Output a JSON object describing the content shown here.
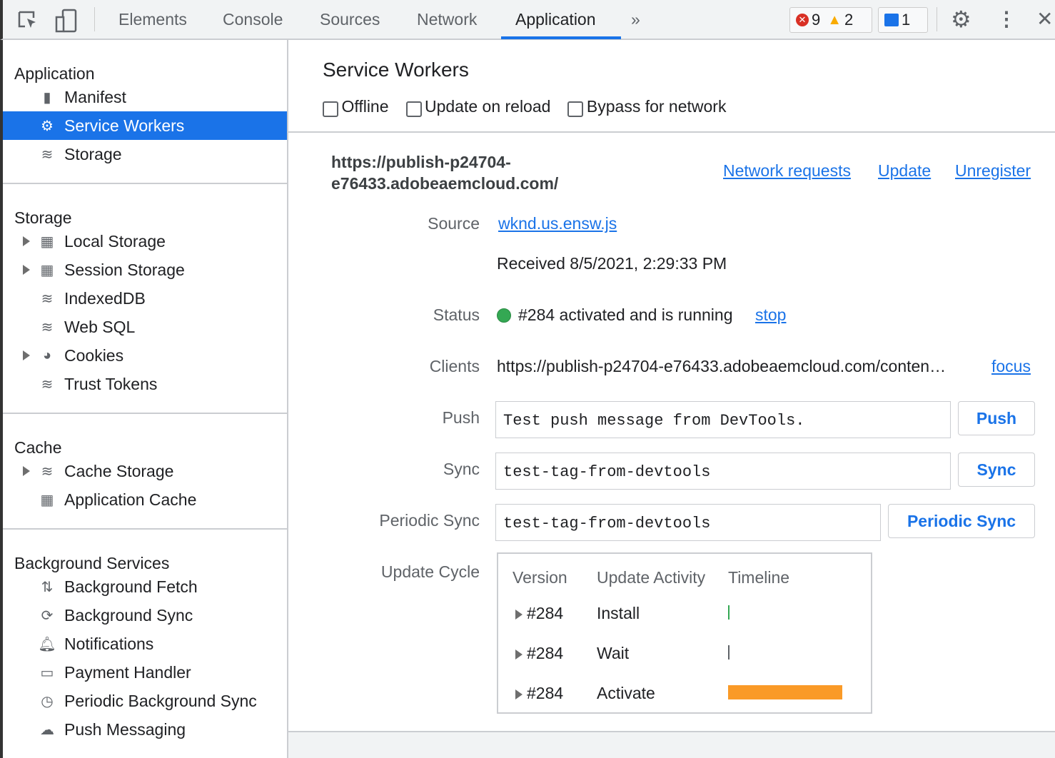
{
  "toolbar": {
    "tabs": [
      "Elements",
      "Console",
      "Sources",
      "Network",
      "Application"
    ],
    "active_tab": "Application",
    "more": "»",
    "errors": "9",
    "warnings": "2",
    "messages": "1",
    "icons": [
      "inspect-icon",
      "device-toggle-icon",
      "gear-icon",
      "more-vert-icon",
      "close-icon"
    ]
  },
  "sidebar": {
    "sections": [
      {
        "title": "Application",
        "items": [
          {
            "label": "Manifest",
            "icon": "file-icon"
          },
          {
            "label": "Service Workers",
            "icon": "gear-icon",
            "selected": true
          },
          {
            "label": "Storage",
            "icon": "database-icon"
          }
        ]
      },
      {
        "title": "Storage",
        "items": [
          {
            "label": "Local Storage",
            "icon": "table-icon",
            "expandable": true
          },
          {
            "label": "Session Storage",
            "icon": "table-icon",
            "expandable": true
          },
          {
            "label": "IndexedDB",
            "icon": "database-icon"
          },
          {
            "label": "Web SQL",
            "icon": "database-icon"
          },
          {
            "label": "Cookies",
            "icon": "cookie-icon",
            "expandable": true
          },
          {
            "label": "Trust Tokens",
            "icon": "database-icon"
          }
        ]
      },
      {
        "title": "Cache",
        "items": [
          {
            "label": "Cache Storage",
            "icon": "database-icon",
            "expandable": true
          },
          {
            "label": "Application Cache",
            "icon": "table-icon"
          }
        ]
      },
      {
        "title": "Background Services",
        "items": [
          {
            "label": "Background Fetch",
            "icon": "updown-arrows-icon"
          },
          {
            "label": "Background Sync",
            "icon": "sync-icon"
          },
          {
            "label": "Notifications",
            "icon": "bell-icon"
          },
          {
            "label": "Payment Handler",
            "icon": "card-icon"
          },
          {
            "label": "Periodic Background Sync",
            "icon": "clock-icon"
          },
          {
            "label": "Push Messaging",
            "icon": "cloud-icon"
          }
        ]
      }
    ]
  },
  "main": {
    "title": "Service Workers",
    "options": [
      "Offline",
      "Update on reload",
      "Bypass for network"
    ],
    "origin_line1": "https://publish-p24704-",
    "origin_line2": "e76433.adobeaemcloud.com/",
    "links": [
      "Network requests",
      "Update",
      "Unregister"
    ],
    "source_label": "Source",
    "source_value": "wknd.us.ensw.js",
    "received": "Received 8/5/2021, 2:29:33 PM",
    "status_label": "Status",
    "status_value": "#284 activated and is running",
    "status_link": "stop",
    "status_color": "#34a853",
    "clients_label": "Clients",
    "clients_value": "https://publish-p24704-e76433.adobeaemcloud.com/conten…",
    "clients_link": "focus",
    "push_label": "Push",
    "push_value": "Test push message from DevTools.",
    "push_button": "Push",
    "sync_label": "Sync",
    "sync_value": "test-tag-from-devtools",
    "sync_button": "Sync",
    "periodic_label": "Periodic Sync",
    "periodic_value": "test-tag-from-devtools",
    "periodic_button": "Periodic Sync",
    "update_cycle_label": "Update Cycle",
    "update_cycle": {
      "headers": [
        "Version",
        "Update Activity",
        "Timeline"
      ],
      "rows": [
        {
          "version": "#284",
          "activity": "Install",
          "color": "#34a853"
        },
        {
          "version": "#284",
          "activity": "Wait",
          "color": "#5f6368"
        },
        {
          "version": "#284",
          "activity": "Activate",
          "color": "#fa9a27"
        }
      ]
    }
  }
}
